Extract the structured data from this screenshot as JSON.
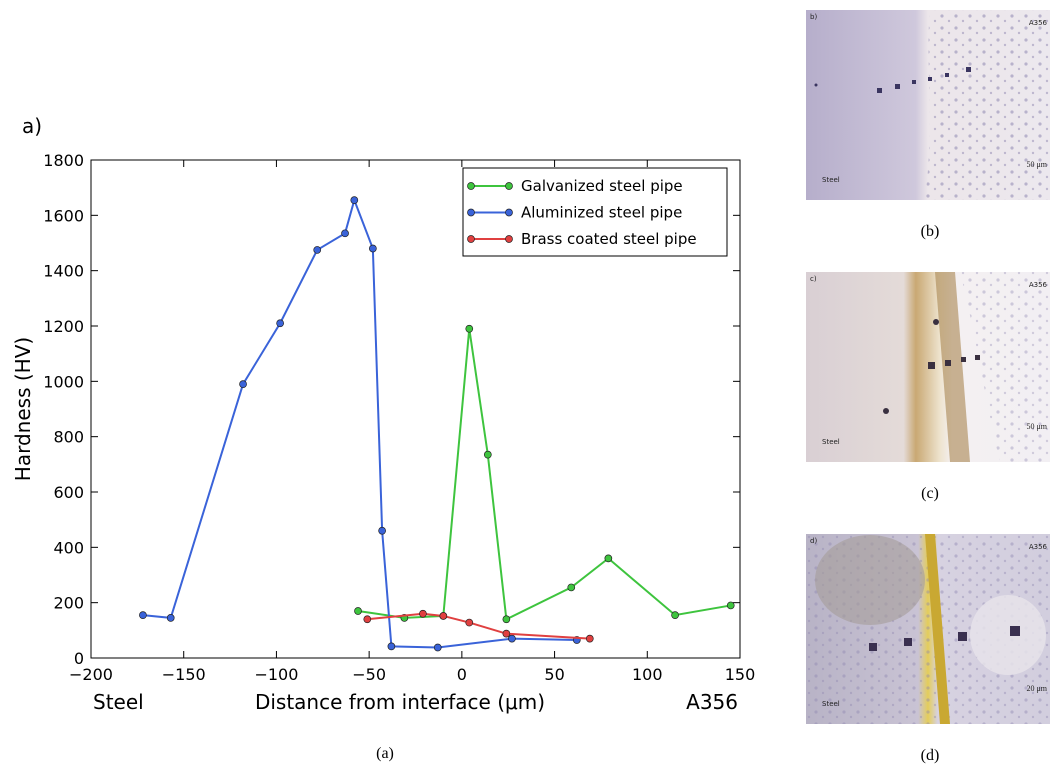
{
  "chart_data": {
    "type": "line",
    "panel_label": "a)",
    "xlabel": "Distance from interface (μm)",
    "ylabel": "Hardness (HV)",
    "left_note": "Steel",
    "right_note": "A356",
    "caption": "(a)",
    "xlim": [
      -200,
      150
    ],
    "xticks": [
      {
        "value": -200,
        "label": "−200"
      },
      {
        "value": -150,
        "label": "−150"
      },
      {
        "value": -100,
        "label": "−100"
      },
      {
        "value": -50,
        "label": "−50"
      },
      0,
      50,
      100,
      150
    ],
    "ylim": [
      0,
      1800
    ],
    "yticks": [
      0,
      200,
      400,
      600,
      800,
      1000,
      1200,
      1400,
      1600,
      1800
    ],
    "legend": "upper right",
    "series": [
      {
        "name": "Galvanized steel pipe",
        "color": "#3ec43e",
        "x": [
          -56,
          -31,
          -10,
          4,
          14,
          24,
          59,
          79,
          115,
          145
        ],
        "values": [
          170,
          145,
          152,
          1190,
          735,
          140,
          255,
          360,
          155,
          190
        ]
      },
      {
        "name": "Aluminized steel pipe",
        "color": "#3a63d9",
        "x": [
          -172,
          -157,
          -118,
          -98,
          -78,
          -63,
          -58,
          -48,
          -43,
          -38,
          -13,
          27,
          62
        ],
        "values": [
          155,
          145,
          990,
          1210,
          1475,
          1535,
          1655,
          1480,
          460,
          42,
          38,
          70,
          65
        ]
      },
      {
        "name": "Brass coated steel pipe",
        "color": "#e04040",
        "x": [
          -51,
          -21,
          -10,
          4,
          24,
          69
        ],
        "values": [
          140,
          160,
          152,
          128,
          88,
          70
        ]
      }
    ]
  },
  "images": [
    {
      "label": "b)",
      "top_right": "A356",
      "bottom_left": "Steel",
      "scale": "50 μm",
      "caption": "(b)"
    },
    {
      "label": "c)",
      "top_right": "A356",
      "bottom_left": "Steel",
      "scale": "50 μm",
      "caption": "(c)"
    },
    {
      "label": "d)",
      "top_right": "A356",
      "bottom_left": "Steel",
      "scale": "20 μm",
      "caption": "(d)"
    }
  ]
}
